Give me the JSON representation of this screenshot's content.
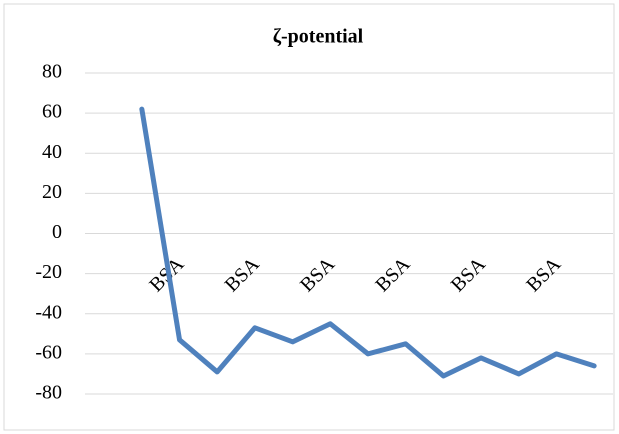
{
  "chart_data": {
    "type": "line",
    "title": "ζ-potential",
    "categories": [
      null,
      "BSA",
      null,
      "BSA",
      null,
      "BSA",
      null,
      "BSA",
      null,
      "BSA",
      null,
      "BSA",
      null
    ],
    "series": [
      {
        "color": "#4f81bd",
        "values": [
          62,
          -53,
          -69,
          -47,
          -54,
          -45,
          -60,
          -55,
          -71,
          -62,
          -70,
          -60,
          -66
        ]
      }
    ],
    "ylim": [
      -80,
      80
    ],
    "yticks": [
      -80,
      -60,
      -40,
      -20,
      0,
      20,
      40,
      60,
      80
    ],
    "grid": true
  }
}
